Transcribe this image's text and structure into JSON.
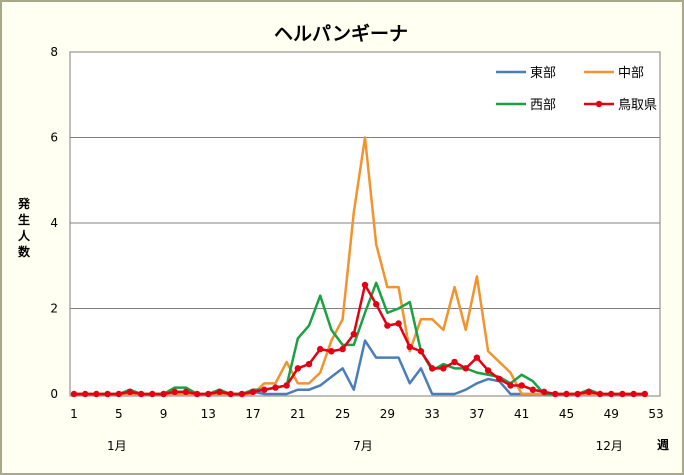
{
  "chart_data": {
    "type": "line",
    "title": "ヘルパンギーナ",
    "ylabel": "発生人数",
    "xlabel": "週",
    "ylim": [
      0,
      8
    ],
    "yticks": [
      0,
      2,
      4,
      6,
      8
    ],
    "xlim": [
      1,
      53
    ],
    "xticks": [
      1,
      5,
      9,
      13,
      17,
      21,
      25,
      29,
      33,
      37,
      41,
      45,
      49,
      53
    ],
    "month_labels": [
      {
        "week": 5,
        "text": "1月"
      },
      {
        "week": 27,
        "text": "7月"
      },
      {
        "week": 49,
        "text": "12月"
      }
    ],
    "grid": "horizontal",
    "legend_position": "top-right",
    "x": [
      1,
      2,
      3,
      4,
      5,
      6,
      7,
      8,
      9,
      10,
      11,
      12,
      13,
      14,
      15,
      16,
      17,
      18,
      19,
      20,
      21,
      22,
      23,
      24,
      25,
      26,
      27,
      28,
      29,
      30,
      31,
      32,
      33,
      34,
      35,
      36,
      37,
      38,
      39,
      40,
      41,
      42,
      43,
      44,
      45,
      46,
      47,
      48,
      49,
      50,
      51,
      52
    ],
    "series": [
      {
        "name": "東部",
        "color": "#4a7ebb",
        "marker": false,
        "values": [
          0,
          0,
          0,
          0,
          0,
          0.05,
          0,
          0,
          0,
          0.05,
          0.05,
          0,
          0,
          0.05,
          0,
          0,
          0.05,
          0,
          0,
          0,
          0.1,
          0.1,
          0.2,
          0.4,
          0.6,
          0.1,
          1.25,
          0.85,
          0.85,
          0.85,
          0.25,
          0.6,
          0,
          0,
          0,
          0.1,
          0.25,
          0.35,
          0.3,
          0,
          0,
          0,
          0,
          0,
          0,
          0,
          0.05,
          0,
          0,
          0,
          0,
          0
        ]
      },
      {
        "name": "中部",
        "color": "#f2932e",
        "marker": false,
        "values": [
          0,
          0,
          0,
          0,
          0,
          0,
          0,
          0,
          0,
          0,
          0,
          0,
          0,
          0,
          0,
          0,
          0,
          0.25,
          0.25,
          0.75,
          0.25,
          0.25,
          0.5,
          1.25,
          1.75,
          4.25,
          6.0,
          3.5,
          2.5,
          2.5,
          1.0,
          1.75,
          1.75,
          1.5,
          2.5,
          1.5,
          2.75,
          1.0,
          0.75,
          0.5,
          0,
          0,
          0,
          0,
          0,
          0,
          0,
          0,
          0,
          0,
          0,
          0
        ]
      },
      {
        "name": "西部",
        "color": "#1aa142",
        "marker": false,
        "values": [
          0,
          0,
          0,
          0,
          0,
          0.1,
          0,
          0,
          0,
          0.15,
          0.15,
          0,
          0,
          0.1,
          0,
          0,
          0.1,
          0.1,
          0.15,
          0.2,
          1.3,
          1.6,
          2.3,
          1.5,
          1.15,
          1.15,
          1.9,
          2.6,
          1.9,
          2.0,
          2.15,
          1.0,
          0.55,
          0.7,
          0.6,
          0.6,
          0.5,
          0.45,
          0.4,
          0.25,
          0.45,
          0.3,
          0,
          0,
          0,
          0,
          0.1,
          0,
          0,
          0,
          0,
          0
        ]
      },
      {
        "name": "鳥取県",
        "color": "#e30014",
        "marker": true,
        "values": [
          0,
          0,
          0,
          0,
          0,
          0.05,
          0,
          0,
          0,
          0.05,
          0.05,
          0,
          0,
          0.05,
          0,
          0,
          0.05,
          0.1,
          0.15,
          0.2,
          0.6,
          0.7,
          1.05,
          1.0,
          1.05,
          1.4,
          2.55,
          2.1,
          1.6,
          1.65,
          1.1,
          1.0,
          0.6,
          0.6,
          0.75,
          0.6,
          0.85,
          0.55,
          0.35,
          0.2,
          0.2,
          0.1,
          0.05,
          0,
          0,
          0,
          0.05,
          0,
          0,
          0,
          0,
          0
        ]
      }
    ]
  }
}
